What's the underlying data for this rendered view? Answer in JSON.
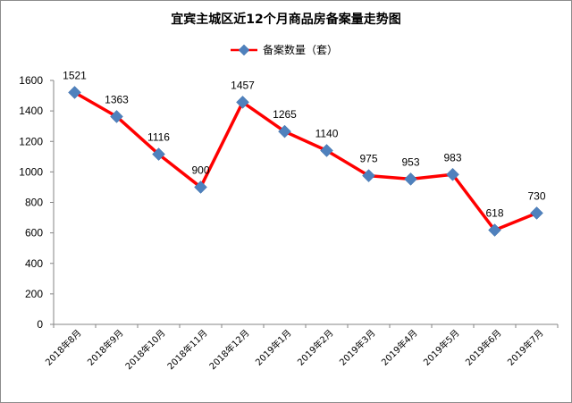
{
  "chart_data": {
    "type": "line",
    "title": "宜宾主城区近12个月商品房备案量走势图",
    "xlabel": "",
    "ylabel": "",
    "categories": [
      "2018年8月",
      "2018年9月",
      "2018年10月",
      "2018年11月",
      "2018年12月",
      "2019年1月",
      "2019年2月",
      "2019年3月",
      "2019年4月",
      "2019年5月",
      "2019年6月",
      "2019年7月"
    ],
    "series": [
      {
        "name": "备案数量（套）",
        "values": [
          1521,
          1363,
          1116,
          900,
          1457,
          1265,
          1140,
          975,
          953,
          983,
          618,
          730
        ]
      }
    ],
    "ylim": [
      0,
      1600
    ],
    "yticks": [
      0,
      200,
      400,
      600,
      800,
      1000,
      1200,
      1400,
      1600
    ],
    "grid": false,
    "legend_position": "top",
    "line_color": "#ff0000",
    "marker_color": "#4f81bd",
    "marker": "diamond"
  }
}
